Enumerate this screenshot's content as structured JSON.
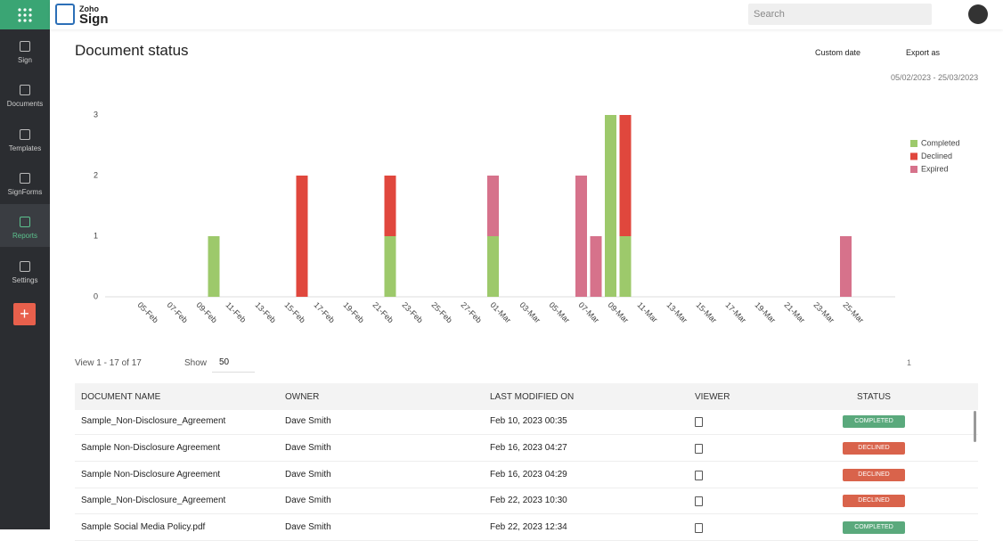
{
  "header": {
    "logo_small": "Zoho",
    "logo": "Sign",
    "search": "Search"
  },
  "nav": [
    {
      "label": "Sign"
    },
    {
      "label": "Documents"
    },
    {
      "label": "Templates"
    },
    {
      "label": "SignForms"
    },
    {
      "label": "Reports",
      "active": true
    },
    {
      "label": "Settings"
    }
  ],
  "page": {
    "title": "Document status",
    "custom_date": "Custom date",
    "export": "Export as",
    "date_range": "05/02/2023 - 25/03/2023"
  },
  "chart_data": {
    "type": "stacked-bar",
    "categories": [
      "05-Feb",
      null,
      "07-Feb",
      null,
      "09-Feb",
      null,
      "11-Feb",
      null,
      "13-Feb",
      null,
      "15-Feb",
      null,
      "17-Feb",
      null,
      "19-Feb",
      null,
      "21-Feb",
      null,
      "23-Feb",
      null,
      "25-Feb",
      null,
      "27-Feb",
      null,
      "01-Mar",
      null,
      "03-Mar",
      null,
      "05-Mar",
      null,
      "07-Mar",
      null,
      "09-Mar",
      null,
      "11-Mar",
      null,
      "13-Mar",
      null,
      "15-Mar",
      null,
      "17-Mar",
      null,
      "19-Mar",
      null,
      "21-Mar",
      null,
      "23-Mar",
      null,
      "25-Mar"
    ],
    "series": [
      {
        "name": "Completed",
        "color": "#9dc96b",
        "values": [
          0,
          0,
          0,
          0,
          0,
          1,
          0,
          0,
          0,
          0,
          0,
          0,
          0,
          0,
          0,
          0,
          0,
          1,
          0,
          0,
          0,
          0,
          0,
          0,
          1,
          0,
          0,
          0,
          0,
          0,
          0,
          0,
          3,
          1,
          0,
          0,
          0,
          0,
          0,
          0,
          0,
          0,
          0,
          0,
          0,
          0,
          0,
          0,
          0
        ]
      },
      {
        "name": "Declined",
        "color": "#e0473d",
        "values": [
          0,
          0,
          0,
          0,
          0,
          0,
          0,
          0,
          0,
          0,
          0,
          2,
          0,
          0,
          0,
          0,
          0,
          1,
          0,
          0,
          0,
          0,
          0,
          0,
          0,
          0,
          0,
          0,
          0,
          0,
          0,
          0,
          0,
          2,
          0,
          0,
          0,
          0,
          0,
          0,
          0,
          0,
          0,
          0,
          0,
          0,
          0,
          0,
          0
        ]
      },
      {
        "name": "Expired",
        "color": "#d6728b",
        "values": [
          0,
          0,
          0,
          0,
          0,
          0,
          0,
          0,
          0,
          0,
          0,
          0,
          0,
          0,
          0,
          0,
          0,
          0,
          0,
          0,
          0,
          0,
          0,
          0,
          1,
          0,
          0,
          0,
          0,
          0,
          2,
          1,
          0,
          0,
          0,
          0,
          0,
          0,
          0,
          0,
          0,
          0,
          0,
          0,
          0,
          0,
          0,
          0,
          1
        ]
      }
    ],
    "ylim": [
      0,
      3
    ],
    "yticks": [
      0,
      1,
      2,
      3
    ],
    "legend": "right"
  },
  "pager": {
    "view": "View 1 - 17 of 17",
    "show": "Show",
    "show_value": "50",
    "page": "1"
  },
  "table": {
    "columns": [
      "DOCUMENT NAME",
      "OWNER",
      "LAST MODIFIED ON",
      "VIEWER",
      "STATUS"
    ],
    "rows": [
      [
        "Sample_Non-Disclosure_Agreement",
        "Dave Smith",
        "Feb 10, 2023 00:35",
        "COMPLETED"
      ],
      [
        "Sample Non-Disclosure Agreement",
        "Dave Smith",
        "Feb 16, 2023 04:27",
        "DECLINED"
      ],
      [
        "Sample Non-Disclosure Agreement",
        "Dave Smith",
        "Feb 16, 2023 04:29",
        "DECLINED"
      ],
      [
        "Sample_Non-Disclosure_Agreement",
        "Dave Smith",
        "Feb 22, 2023 10:30",
        "DECLINED"
      ],
      [
        "Sample Social Media Policy.pdf",
        "Dave Smith",
        "Feb 22, 2023 12:34",
        "COMPLETED"
      ]
    ],
    "status_colors": {
      "COMPLETED": "#5aa97c",
      "DECLINED": "#d9634b"
    }
  }
}
